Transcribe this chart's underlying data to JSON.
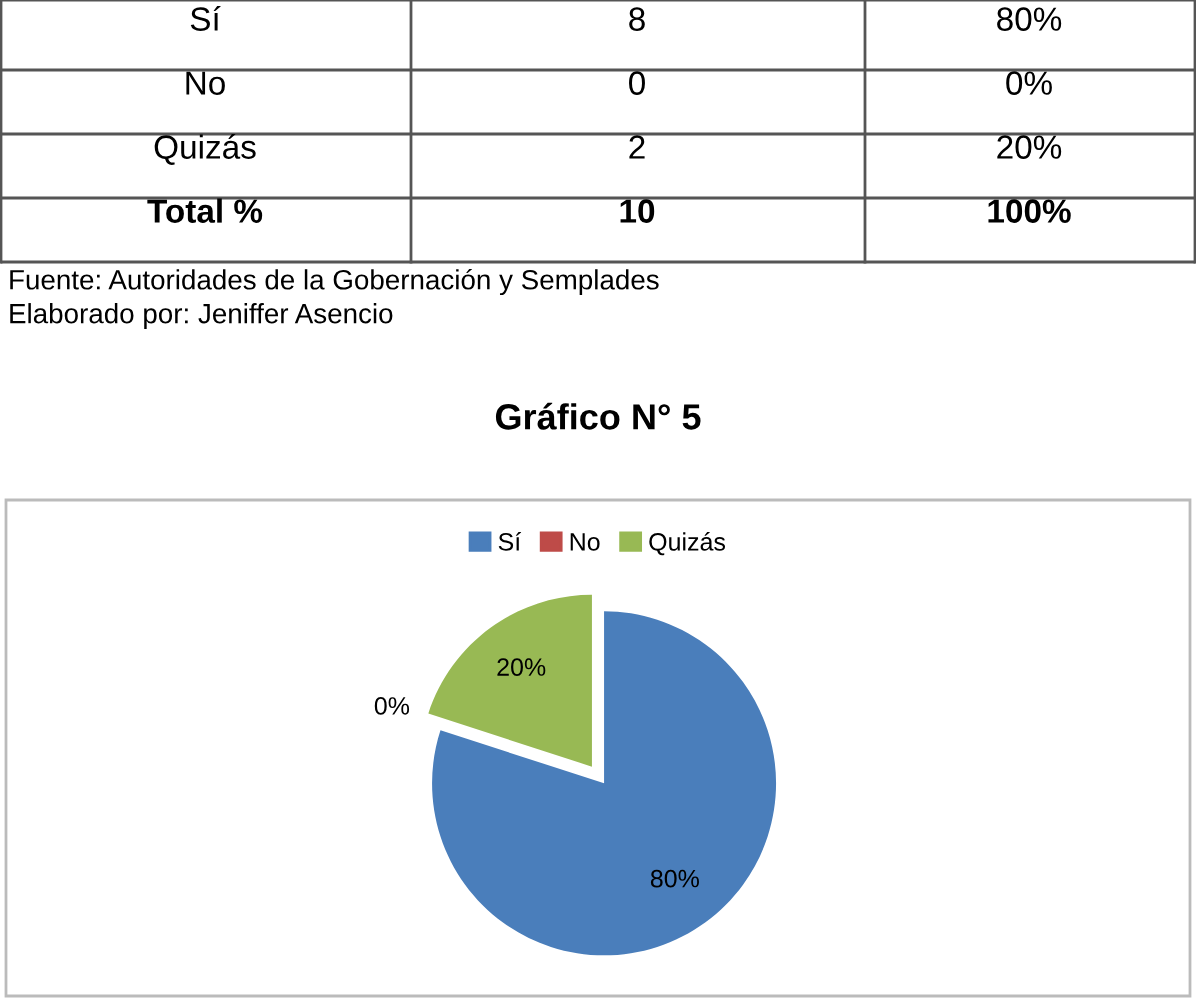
{
  "chart_data": {
    "type": "pie",
    "title": "Gráfico N° 5",
    "categories": [
      "Sí",
      "No",
      "Quizás"
    ],
    "values": [
      80,
      0,
      20
    ],
    "colors": [
      "#4a7ebb",
      "#be4b48",
      "#98b954"
    ],
    "value_labels": [
      "80%",
      "0%",
      "20%"
    ],
    "legend": "top",
    "annotations": [
      "Sí",
      "8",
      "80%",
      "No",
      "0",
      "0%",
      "Quizás",
      "2",
      "20%",
      "Total %",
      "10",
      "100%",
      "Fuente: Autoridades de la Gobernación y Semplades",
      "Elaborado por: Jeniffer Asencio"
    ]
  }
}
